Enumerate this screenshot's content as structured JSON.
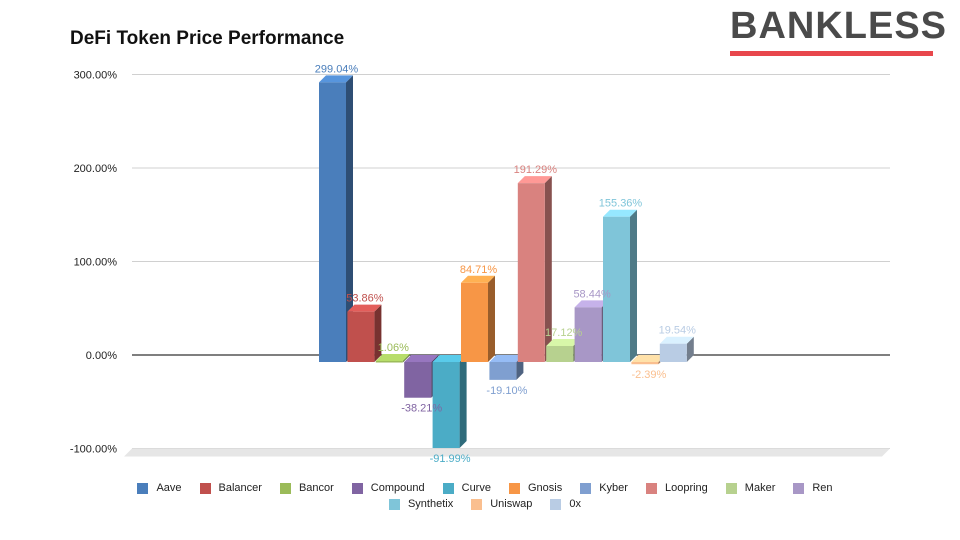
{
  "brand": {
    "name": "BANKLESS",
    "accent": "#e8474c"
  },
  "chart_data": {
    "type": "bar",
    "title": "DeFi Token Price Performance",
    "xlabel": "",
    "ylabel": "",
    "ylim": [
      -100,
      300
    ],
    "y_ticks": [
      300,
      200,
      100,
      0,
      -100
    ],
    "y_tick_labels": [
      "300.00%",
      "200.00%",
      "100.00%",
      "0.00%",
      "-100.00%"
    ],
    "grid": true,
    "legend_position": "bottom",
    "categories": [
      ""
    ],
    "series": [
      {
        "name": "Aave",
        "values": [
          299.04
        ],
        "label": "299.04%",
        "color": "#4a7ebb"
      },
      {
        "name": "Balancer",
        "values": [
          53.86
        ],
        "label": "53.86%",
        "color": "#c0504d"
      },
      {
        "name": "Bancor",
        "values": [
          1.06
        ],
        "label": "1.06%",
        "color": "#9bbb59"
      },
      {
        "name": "Compound",
        "values": [
          -38.21
        ],
        "label": "-38.21%",
        "color": "#8064a2"
      },
      {
        "name": "Curve",
        "values": [
          -91.99
        ],
        "label": "-91.99%",
        "color": "#4bacc6"
      },
      {
        "name": "Gnosis",
        "values": [
          84.71
        ],
        "label": "84.71%",
        "color": "#f79646"
      },
      {
        "name": "Kyber",
        "values": [
          -19.1
        ],
        "label": "-19.10%",
        "color": "#7f9fd0"
      },
      {
        "name": "Loopring",
        "values": [
          191.29
        ],
        "label": "191.29%",
        "color": "#d9827f"
      },
      {
        "name": "Maker",
        "values": [
          17.12
        ],
        "label": "17.12%",
        "color": "#b7d18f"
      },
      {
        "name": "Ren",
        "values": [
          58.44
        ],
        "label": "58.44%",
        "color": "#a897c6"
      },
      {
        "name": "Synthetix",
        "values": [
          155.36
        ],
        "label": "155.36%",
        "color": "#7fc5d9"
      },
      {
        "name": "Uniswap",
        "values": [
          -2.39
        ],
        "label": "-2.39%",
        "color": "#fabf8f"
      },
      {
        "name": "0x",
        "values": [
          19.54
        ],
        "label": "19.54%",
        "color": "#b9cce4"
      }
    ]
  }
}
